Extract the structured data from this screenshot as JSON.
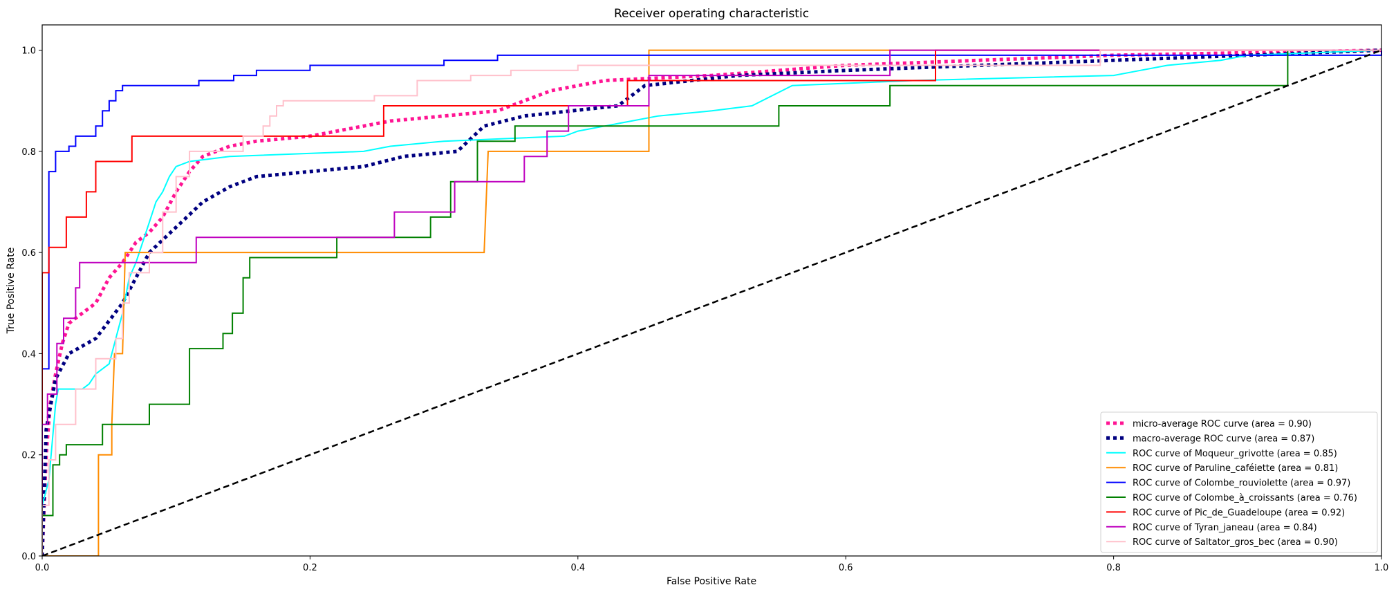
{
  "chart_data": {
    "type": "line",
    "title": "Receiver operating characteristic",
    "xlabel": "False Positive Rate",
    "ylabel": "True Positive Rate",
    "xlim": [
      0.0,
      1.0
    ],
    "ylim": [
      0.0,
      1.05
    ],
    "x_ticks": [
      "0.0",
      "0.2",
      "0.4",
      "0.6",
      "0.8",
      "1.0"
    ],
    "y_ticks": [
      "0.0",
      "0.2",
      "0.4",
      "0.6",
      "0.8",
      "1.0"
    ],
    "grid": false,
    "legend_position": "lower-right",
    "series": [
      {
        "name": "micro-average ROC curve (area = 0.90)",
        "color": "#ff1493",
        "style": "dotted",
        "width": 5,
        "points": [
          [
            0,
            0
          ],
          [
            0.003,
            0.2
          ],
          [
            0.006,
            0.3
          ],
          [
            0.01,
            0.36
          ],
          [
            0.015,
            0.42
          ],
          [
            0.02,
            0.46
          ],
          [
            0.03,
            0.48
          ],
          [
            0.04,
            0.5
          ],
          [
            0.05,
            0.55
          ],
          [
            0.06,
            0.58
          ],
          [
            0.07,
            0.62
          ],
          [
            0.08,
            0.64
          ],
          [
            0.09,
            0.67
          ],
          [
            0.1,
            0.72
          ],
          [
            0.11,
            0.76
          ],
          [
            0.12,
            0.79
          ],
          [
            0.14,
            0.81
          ],
          [
            0.16,
            0.82
          ],
          [
            0.2,
            0.83
          ],
          [
            0.26,
            0.86
          ],
          [
            0.3,
            0.87
          ],
          [
            0.34,
            0.88
          ],
          [
            0.38,
            0.92
          ],
          [
            0.42,
            0.94
          ],
          [
            0.5,
            0.95
          ],
          [
            0.6,
            0.97
          ],
          [
            0.7,
            0.98
          ],
          [
            0.8,
            0.99
          ],
          [
            1.0,
            1.0
          ]
        ]
      },
      {
        "name": "macro-average ROC curve (area = 0.87)",
        "color": "#000080",
        "style": "dotted",
        "width": 5,
        "points": [
          [
            0,
            0
          ],
          [
            0.003,
            0.25
          ],
          [
            0.01,
            0.35
          ],
          [
            0.02,
            0.4
          ],
          [
            0.04,
            0.43
          ],
          [
            0.06,
            0.5
          ],
          [
            0.08,
            0.6
          ],
          [
            0.1,
            0.65
          ],
          [
            0.12,
            0.7
          ],
          [
            0.14,
            0.73
          ],
          [
            0.16,
            0.75
          ],
          [
            0.2,
            0.76
          ],
          [
            0.24,
            0.77
          ],
          [
            0.27,
            0.79
          ],
          [
            0.31,
            0.8
          ],
          [
            0.33,
            0.85
          ],
          [
            0.36,
            0.87
          ],
          [
            0.43,
            0.89
          ],
          [
            0.45,
            0.93
          ],
          [
            0.52,
            0.95
          ],
          [
            0.6,
            0.96
          ],
          [
            0.7,
            0.97
          ],
          [
            0.8,
            0.98
          ],
          [
            1.0,
            1.0
          ]
        ]
      },
      {
        "name": "ROC curve of Moqueur_grivotte (area = 0.85)",
        "color": "#00ffff",
        "style": "solid",
        "width": 2,
        "points": [
          [
            0,
            0
          ],
          [
            0,
            0.1
          ],
          [
            0.005,
            0.15
          ],
          [
            0.01,
            0.3
          ],
          [
            0.012,
            0.33
          ],
          [
            0.03,
            0.33
          ],
          [
            0.035,
            0.34
          ],
          [
            0.04,
            0.36
          ],
          [
            0.045,
            0.37
          ],
          [
            0.05,
            0.38
          ],
          [
            0.055,
            0.43
          ],
          [
            0.06,
            0.48
          ],
          [
            0.065,
            0.55
          ],
          [
            0.07,
            0.58
          ],
          [
            0.075,
            0.62
          ],
          [
            0.08,
            0.66
          ],
          [
            0.085,
            0.7
          ],
          [
            0.09,
            0.72
          ],
          [
            0.095,
            0.75
          ],
          [
            0.1,
            0.77
          ],
          [
            0.11,
            0.78
          ],
          [
            0.14,
            0.79
          ],
          [
            0.24,
            0.8
          ],
          [
            0.26,
            0.81
          ],
          [
            0.3,
            0.82
          ],
          [
            0.39,
            0.83
          ],
          [
            0.4,
            0.84
          ],
          [
            0.42,
            0.85
          ],
          [
            0.44,
            0.86
          ],
          [
            0.46,
            0.87
          ],
          [
            0.5,
            0.88
          ],
          [
            0.53,
            0.89
          ],
          [
            0.56,
            0.93
          ],
          [
            0.65,
            0.94
          ],
          [
            0.8,
            0.95
          ],
          [
            0.82,
            0.96
          ],
          [
            0.84,
            0.97
          ],
          [
            0.88,
            0.98
          ],
          [
            0.9,
            0.99
          ],
          [
            1.0,
            1.0
          ]
        ]
      },
      {
        "name": "ROC curve of Paruline_caféiette (area = 0.81)",
        "color": "#ff8c00",
        "style": "solid",
        "width": 2,
        "points": [
          [
            0,
            0
          ],
          [
            0.042,
            0
          ],
          [
            0.042,
            0.2
          ],
          [
            0.052,
            0.2
          ],
          [
            0.052,
            0.26
          ],
          [
            0.054,
            0.4
          ],
          [
            0.06,
            0.4
          ],
          [
            0.062,
            0.6
          ],
          [
            0.33,
            0.6
          ],
          [
            0.333,
            0.8
          ],
          [
            0.453,
            0.8
          ],
          [
            0.453,
            1.0
          ],
          [
            1.0,
            1.0
          ]
        ]
      },
      {
        "name": "ROC curve of Colombe_rouviolette (area = 0.97)",
        "color": "#0000ff",
        "style": "solid",
        "width": 2,
        "points": [
          [
            0,
            0
          ],
          [
            0,
            0.37
          ],
          [
            0.005,
            0.37
          ],
          [
            0.005,
            0.76
          ],
          [
            0.01,
            0.76
          ],
          [
            0.01,
            0.8
          ],
          [
            0.02,
            0.8
          ],
          [
            0.02,
            0.81
          ],
          [
            0.025,
            0.81
          ],
          [
            0.025,
            0.83
          ],
          [
            0.04,
            0.83
          ],
          [
            0.04,
            0.85
          ],
          [
            0.045,
            0.85
          ],
          [
            0.045,
            0.88
          ],
          [
            0.05,
            0.88
          ],
          [
            0.05,
            0.9
          ],
          [
            0.055,
            0.9
          ],
          [
            0.055,
            0.92
          ],
          [
            0.06,
            0.92
          ],
          [
            0.06,
            0.93
          ],
          [
            0.117,
            0.93
          ],
          [
            0.117,
            0.94
          ],
          [
            0.143,
            0.94
          ],
          [
            0.143,
            0.95
          ],
          [
            0.16,
            0.95
          ],
          [
            0.16,
            0.96
          ],
          [
            0.2,
            0.96
          ],
          [
            0.2,
            0.97
          ],
          [
            0.3,
            0.97
          ],
          [
            0.3,
            0.98
          ],
          [
            0.34,
            0.98
          ],
          [
            0.34,
            0.99
          ],
          [
            1.0,
            0.99
          ],
          [
            1.0,
            1.0
          ]
        ]
      },
      {
        "name": "ROC curve of Colombe_à_croissants (area = 0.76)",
        "color": "#008000",
        "style": "solid",
        "width": 2,
        "points": [
          [
            0,
            0
          ],
          [
            0,
            0.08
          ],
          [
            0.008,
            0.08
          ],
          [
            0.008,
            0.18
          ],
          [
            0.013,
            0.18
          ],
          [
            0.013,
            0.2
          ],
          [
            0.018,
            0.2
          ],
          [
            0.018,
            0.22
          ],
          [
            0.045,
            0.22
          ],
          [
            0.045,
            0.26
          ],
          [
            0.08,
            0.26
          ],
          [
            0.08,
            0.3
          ],
          [
            0.11,
            0.3
          ],
          [
            0.11,
            0.41
          ],
          [
            0.135,
            0.41
          ],
          [
            0.135,
            0.44
          ],
          [
            0.142,
            0.44
          ],
          [
            0.142,
            0.48
          ],
          [
            0.15,
            0.48
          ],
          [
            0.15,
            0.55
          ],
          [
            0.155,
            0.55
          ],
          [
            0.155,
            0.59
          ],
          [
            0.22,
            0.59
          ],
          [
            0.22,
            0.63
          ],
          [
            0.29,
            0.63
          ],
          [
            0.29,
            0.67
          ],
          [
            0.305,
            0.67
          ],
          [
            0.305,
            0.74
          ],
          [
            0.325,
            0.74
          ],
          [
            0.325,
            0.82
          ],
          [
            0.353,
            0.82
          ],
          [
            0.353,
            0.85
          ],
          [
            0.55,
            0.85
          ],
          [
            0.55,
            0.89
          ],
          [
            0.633,
            0.89
          ],
          [
            0.633,
            0.93
          ],
          [
            0.93,
            0.93
          ],
          [
            0.93,
            1.0
          ],
          [
            1.0,
            1.0
          ]
        ]
      },
      {
        "name": "ROC curve of Pic_de_Guadeloupe (area = 0.92)",
        "color": "#ff0000",
        "style": "solid",
        "width": 2,
        "points": [
          [
            0,
            0
          ],
          [
            0,
            0.56
          ],
          [
            0.005,
            0.56
          ],
          [
            0.005,
            0.61
          ],
          [
            0.018,
            0.61
          ],
          [
            0.018,
            0.67
          ],
          [
            0.033,
            0.67
          ],
          [
            0.033,
            0.72
          ],
          [
            0.04,
            0.72
          ],
          [
            0.04,
            0.78
          ],
          [
            0.067,
            0.78
          ],
          [
            0.067,
            0.83
          ],
          [
            0.255,
            0.83
          ],
          [
            0.255,
            0.89
          ],
          [
            0.437,
            0.89
          ],
          [
            0.437,
            0.94
          ],
          [
            0.667,
            0.94
          ],
          [
            0.667,
            1.0
          ],
          [
            1.0,
            1.0
          ]
        ]
      },
      {
        "name": "ROC curve of Tyran_janeau (area = 0.84)",
        "color": "#bf00bf",
        "style": "solid",
        "width": 2,
        "points": [
          [
            0,
            0
          ],
          [
            0,
            0.26
          ],
          [
            0.004,
            0.26
          ],
          [
            0.004,
            0.32
          ],
          [
            0.011,
            0.32
          ],
          [
            0.011,
            0.42
          ],
          [
            0.016,
            0.42
          ],
          [
            0.016,
            0.47
          ],
          [
            0.025,
            0.47
          ],
          [
            0.025,
            0.53
          ],
          [
            0.028,
            0.53
          ],
          [
            0.028,
            0.58
          ],
          [
            0.115,
            0.58
          ],
          [
            0.115,
            0.63
          ],
          [
            0.263,
            0.63
          ],
          [
            0.263,
            0.68
          ],
          [
            0.308,
            0.68
          ],
          [
            0.308,
            0.74
          ],
          [
            0.36,
            0.74
          ],
          [
            0.36,
            0.79
          ],
          [
            0.377,
            0.79
          ],
          [
            0.377,
            0.84
          ],
          [
            0.393,
            0.84
          ],
          [
            0.393,
            0.89
          ],
          [
            0.453,
            0.89
          ],
          [
            0.453,
            0.95
          ],
          [
            0.633,
            0.95
          ],
          [
            0.633,
            1.0
          ],
          [
            1.0,
            1.0
          ]
        ]
      },
      {
        "name": "ROC curve of Saltator_gros_bec (area = 0.90)",
        "color": "#ffc0cb",
        "style": "solid",
        "width": 2,
        "points": [
          [
            0,
            0
          ],
          [
            0,
            0.1
          ],
          [
            0.005,
            0.1
          ],
          [
            0.005,
            0.19
          ],
          [
            0.01,
            0.19
          ],
          [
            0.01,
            0.26
          ],
          [
            0.025,
            0.26
          ],
          [
            0.025,
            0.33
          ],
          [
            0.04,
            0.33
          ],
          [
            0.04,
            0.39
          ],
          [
            0.055,
            0.39
          ],
          [
            0.055,
            0.43
          ],
          [
            0.06,
            0.43
          ],
          [
            0.06,
            0.5
          ],
          [
            0.065,
            0.5
          ],
          [
            0.065,
            0.56
          ],
          [
            0.08,
            0.56
          ],
          [
            0.08,
            0.6
          ],
          [
            0.09,
            0.6
          ],
          [
            0.09,
            0.68
          ],
          [
            0.1,
            0.68
          ],
          [
            0.1,
            0.75
          ],
          [
            0.11,
            0.75
          ],
          [
            0.11,
            0.8
          ],
          [
            0.15,
            0.8
          ],
          [
            0.15,
            0.83
          ],
          [
            0.165,
            0.83
          ],
          [
            0.165,
            0.85
          ],
          [
            0.17,
            0.85
          ],
          [
            0.17,
            0.87
          ],
          [
            0.175,
            0.87
          ],
          [
            0.175,
            0.89
          ],
          [
            0.18,
            0.89
          ],
          [
            0.18,
            0.9
          ],
          [
            0.248,
            0.9
          ],
          [
            0.248,
            0.91
          ],
          [
            0.28,
            0.91
          ],
          [
            0.28,
            0.94
          ],
          [
            0.32,
            0.94
          ],
          [
            0.32,
            0.95
          ],
          [
            0.35,
            0.95
          ],
          [
            0.35,
            0.96
          ],
          [
            0.4,
            0.96
          ],
          [
            0.4,
            0.97
          ],
          [
            0.79,
            0.97
          ],
          [
            0.79,
            1.0
          ],
          [
            1.0,
            1.0
          ]
        ]
      },
      {
        "color": "#000000",
        "style": "dashed",
        "width": 2.5,
        "legend": false,
        "points": [
          [
            0,
            0
          ],
          [
            1,
            1
          ]
        ]
      }
    ]
  }
}
